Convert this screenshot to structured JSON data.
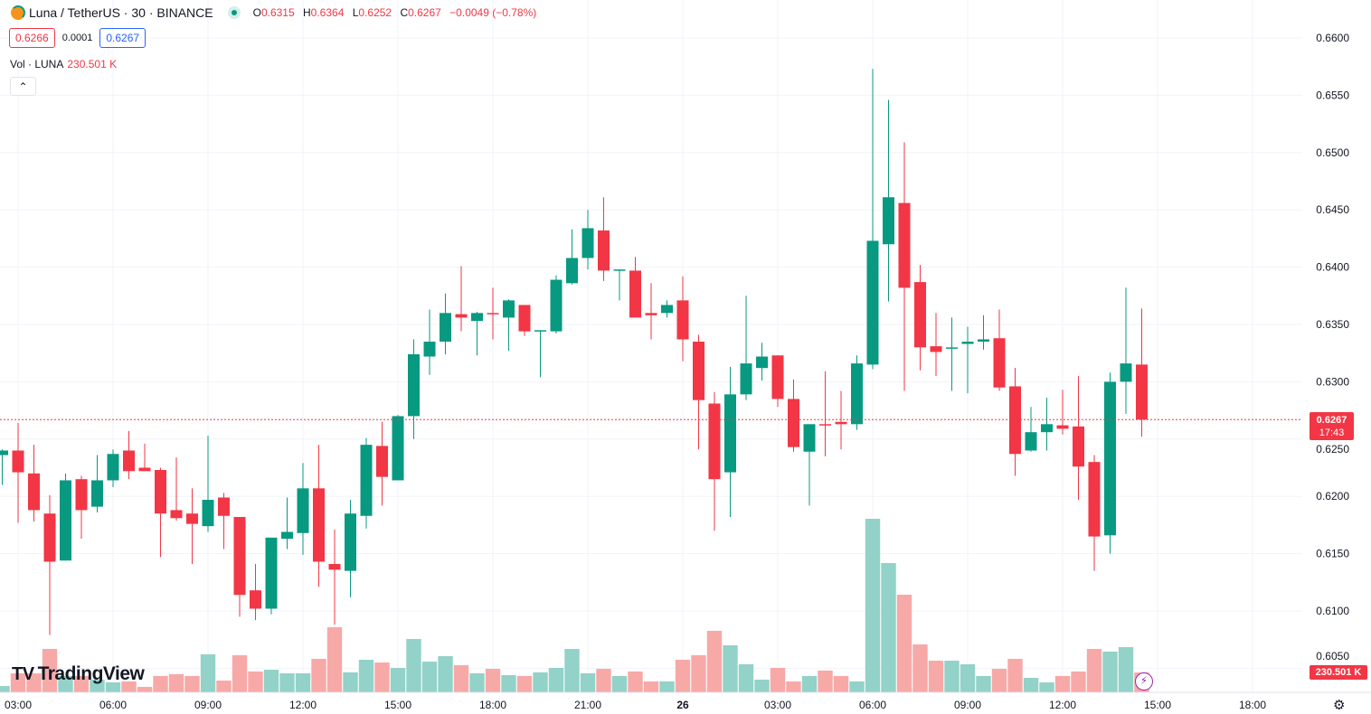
{
  "header": {
    "symbol": "Luna / TetherUS · 30 · BINANCE",
    "ohlc": {
      "o_label": "O",
      "o": "0.6315",
      "h_label": "H",
      "h": "0.6364",
      "l_label": "L",
      "l": "0.6252",
      "c_label": "C",
      "c": "0.6267",
      "change": "−0.0049 (−0.78%)"
    },
    "bid": "0.6266",
    "spread": "0.0001",
    "ask": "0.6267",
    "volume_label": "Vol · LUNA",
    "volume_value": "230.501 K",
    "collapse_icon": "chevron-up-icon"
  },
  "branding": {
    "logo_mark": "17",
    "logo_text": "TradingView"
  },
  "price_label": {
    "price": "0.6267",
    "countdown": "17:43"
  },
  "volume_label": "230.501 K",
  "colors": {
    "up": "#089981",
    "down": "#F23645",
    "up_volume": "#92D2C8",
    "down_volume": "#F7A9A7",
    "grid": "#F0F3FA"
  },
  "chart_data": {
    "type": "candlestick",
    "interval": "30",
    "y_ticks": [
      "0.6600",
      "0.6550",
      "0.6500",
      "0.6450",
      "0.6400",
      "0.6350",
      "0.6300",
      "0.6250",
      "0.6200",
      "0.6150",
      "0.6100",
      "0.6050"
    ],
    "ylim": [
      0.604,
      0.6633
    ],
    "x_ticks": [
      "03:00",
      "06:00",
      "09:00",
      "12:00",
      "15:00",
      "18:00",
      "21:00",
      "26",
      "03:00",
      "06:00",
      "09:00",
      "12:00",
      "15:00",
      "18:00"
    ],
    "first_bar_time": "02:30",
    "grid": true,
    "last_price": 0.6267,
    "columns": [
      "open",
      "high",
      "low",
      "close",
      "volume_k"
    ],
    "candles": [
      [
        0.6236,
        0.6241,
        0.621,
        0.624,
        73
      ],
      [
        0.624,
        0.6264,
        0.6177,
        0.6221,
        220
      ],
      [
        0.622,
        0.6245,
        0.6178,
        0.6188,
        220
      ],
      [
        0.6185,
        0.6201,
        0.6079,
        0.6143,
        503
      ],
      [
        0.6144,
        0.622,
        0.6144,
        0.6214,
        189
      ],
      [
        0.6215,
        0.6218,
        0.6163,
        0.6188,
        189
      ],
      [
        0.6191,
        0.6236,
        0.6186,
        0.6214,
        147
      ],
      [
        0.6214,
        0.6241,
        0.6208,
        0.6237,
        115
      ],
      [
        0.624,
        0.6257,
        0.6215,
        0.6222,
        126
      ],
      [
        0.6225,
        0.6246,
        0.6222,
        0.6222,
        63
      ],
      [
        0.6223,
        0.6225,
        0.6147,
        0.6185,
        189
      ],
      [
        0.6188,
        0.6234,
        0.6179,
        0.6181,
        210
      ],
      [
        0.6185,
        0.6207,
        0.6141,
        0.6176,
        189
      ],
      [
        0.6174,
        0.6253,
        0.6169,
        0.6197,
        440
      ],
      [
        0.6199,
        0.6203,
        0.6154,
        0.6183,
        136
      ],
      [
        0.6182,
        0.6182,
        0.6095,
        0.6114,
        430
      ],
      [
        0.6118,
        0.6141,
        0.6092,
        0.6102,
        241
      ],
      [
        0.6102,
        0.6164,
        0.6097,
        0.6164,
        262
      ],
      [
        0.6163,
        0.6199,
        0.6154,
        0.6169,
        220
      ],
      [
        0.6168,
        0.6229,
        0.6149,
        0.6207,
        220
      ],
      [
        0.6207,
        0.6245,
        0.6121,
        0.6143,
        388
      ],
      [
        0.6141,
        0.6171,
        0.6088,
        0.6136,
        755
      ],
      [
        0.6135,
        0.6197,
        0.6112,
        0.6185,
        231
      ],
      [
        0.6183,
        0.6251,
        0.6172,
        0.6245,
        377
      ],
      [
        0.6244,
        0.6265,
        0.6192,
        0.6217,
        346
      ],
      [
        0.6214,
        0.6271,
        0.6214,
        0.627,
        283
      ],
      [
        0.627,
        0.6337,
        0.625,
        0.6324,
        618
      ],
      [
        0.6322,
        0.6363,
        0.6306,
        0.6335,
        356
      ],
      [
        0.6335,
        0.6377,
        0.6324,
        0.636,
        419
      ],
      [
        0.6359,
        0.6401,
        0.6344,
        0.6356,
        314
      ],
      [
        0.6353,
        0.6361,
        0.6323,
        0.636,
        220
      ],
      [
        0.636,
        0.6382,
        0.6337,
        0.6359,
        272
      ],
      [
        0.6356,
        0.6372,
        0.6327,
        0.6371,
        199
      ],
      [
        0.6367,
        0.6367,
        0.634,
        0.6344,
        189
      ],
      [
        0.6344,
        0.6345,
        0.6304,
        0.6345,
        231
      ],
      [
        0.6344,
        0.6393,
        0.6342,
        0.6389,
        283
      ],
      [
        0.6386,
        0.6433,
        0.6385,
        0.6408,
        503
      ],
      [
        0.6408,
        0.645,
        0.6398,
        0.6434,
        220
      ],
      [
        0.6432,
        0.6461,
        0.6388,
        0.6397,
        272
      ],
      [
        0.6397,
        0.6398,
        0.6371,
        0.6398,
        189
      ],
      [
        0.6397,
        0.6409,
        0.6356,
        0.6356,
        241
      ],
      [
        0.636,
        0.6386,
        0.6337,
        0.6358,
        126
      ],
      [
        0.636,
        0.6371,
        0.6356,
        0.6367,
        126
      ],
      [
        0.6371,
        0.6392,
        0.6318,
        0.6337,
        377
      ],
      [
        0.6335,
        0.6341,
        0.6241,
        0.6284,
        430
      ],
      [
        0.6281,
        0.6291,
        0.617,
        0.6215,
        713
      ],
      [
        0.6221,
        0.6313,
        0.6182,
        0.6289,
        545
      ],
      [
        0.6289,
        0.6375,
        0.6284,
        0.6316,
        325
      ],
      [
        0.6312,
        0.6334,
        0.6301,
        0.6322,
        147
      ],
      [
        0.6323,
        0.6323,
        0.6278,
        0.6285,
        283
      ],
      [
        0.6285,
        0.6302,
        0.6239,
        0.6243,
        126
      ],
      [
        0.6239,
        0.6263,
        0.6192,
        0.6263,
        189
      ],
      [
        0.6263,
        0.6309,
        0.6235,
        0.6262,
        252
      ],
      [
        0.6265,
        0.6292,
        0.6241,
        0.6263,
        189
      ],
      [
        0.6263,
        0.6323,
        0.6258,
        0.6316,
        126
      ],
      [
        0.6315,
        0.6573,
        0.6311,
        0.6423,
        2012
      ],
      [
        0.642,
        0.6546,
        0.637,
        0.6461,
        1499
      ],
      [
        0.6456,
        0.6509,
        0.6292,
        0.6382,
        1132
      ],
      [
        0.6387,
        0.6402,
        0.631,
        0.633,
        555
      ],
      [
        0.6331,
        0.636,
        0.6305,
        0.6326,
        367
      ],
      [
        0.6329,
        0.6356,
        0.6292,
        0.633,
        367
      ],
      [
        0.6333,
        0.6348,
        0.629,
        0.6335,
        325
      ],
      [
        0.6335,
        0.6358,
        0.6328,
        0.6337,
        189
      ],
      [
        0.6338,
        0.6363,
        0.6292,
        0.6295,
        272
      ],
      [
        0.6296,
        0.6312,
        0.6218,
        0.6237,
        388
      ],
      [
        0.624,
        0.6278,
        0.6239,
        0.6256,
        168
      ],
      [
        0.6256,
        0.6286,
        0.624,
        0.6263,
        115
      ],
      [
        0.6262,
        0.6293,
        0.6254,
        0.6259,
        189
      ],
      [
        0.6261,
        0.6305,
        0.6197,
        0.6226,
        241
      ],
      [
        0.623,
        0.6236,
        0.6135,
        0.6165,
        503
      ],
      [
        0.6166,
        0.6308,
        0.615,
        0.63,
        472
      ],
      [
        0.63,
        0.6382,
        0.6272,
        0.6316,
        524
      ],
      [
        0.6315,
        0.6364,
        0.6252,
        0.6267,
        230.501
      ]
    ]
  }
}
